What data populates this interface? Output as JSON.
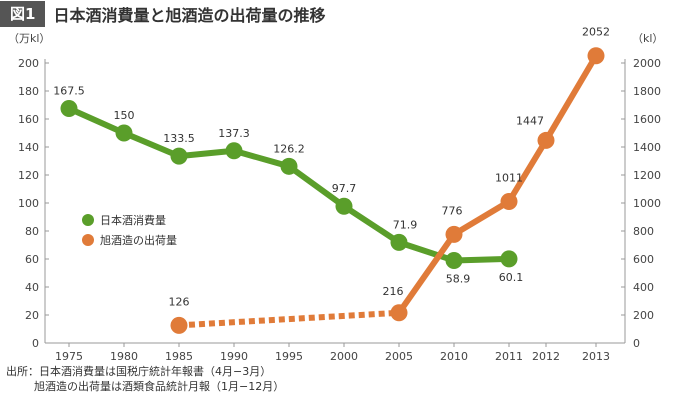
{
  "figure": {
    "badge": "図1",
    "title": "日本酒消費量と旭酒造の出荷量の推移"
  },
  "chart_data": {
    "type": "line",
    "left_axis_unit": "（万kl）",
    "right_axis_unit": "（kl）",
    "left_ylim": [
      0,
      200
    ],
    "right_ylim": [
      0,
      2000
    ],
    "left_ticks": [
      "0",
      "20",
      "40",
      "60",
      "80",
      "100",
      "120",
      "140",
      "160",
      "180",
      "200"
    ],
    "right_ticks": [
      "0",
      "200",
      "400",
      "600",
      "800",
      "1000",
      "1200",
      "1400",
      "1600",
      "1800",
      "2000"
    ],
    "x_ticks": [
      "1975",
      "1980",
      "1985",
      "1990",
      "1995",
      "2000",
      "2005",
      "2010",
      "2011",
      "2012",
      "2013"
    ],
    "series": [
      {
        "name": "日本酒消費量",
        "axis": "left",
        "color": "#5a9e2a",
        "points": [
          {
            "x": "1975",
            "value": 167.5,
            "label": "167.5"
          },
          {
            "x": "1980",
            "value": 150,
            "label": "150"
          },
          {
            "x": "1985",
            "value": 133.5,
            "label": "133.5"
          },
          {
            "x": "1990",
            "value": 137.3,
            "label": "137.3"
          },
          {
            "x": "1995",
            "value": 126.2,
            "label": "126.2"
          },
          {
            "x": "2000",
            "value": 97.7,
            "label": "97.7"
          },
          {
            "x": "2005",
            "value": 71.9,
            "label": "71.9"
          },
          {
            "x": "2010",
            "value": 58.9,
            "label": "58.9"
          },
          {
            "x": "2011",
            "value": 60.1,
            "label": "60.1"
          }
        ]
      },
      {
        "name": "旭酒造の出荷量",
        "axis": "right",
        "color": "#e07b39",
        "dashed_until": "2005",
        "points": [
          {
            "x": "1985",
            "value": 126,
            "label": "126"
          },
          {
            "x": "2005",
            "value": 216,
            "label": "216"
          },
          {
            "x": "2010",
            "value": 776,
            "label": "776"
          },
          {
            "x": "2011",
            "value": 1011,
            "label": "1011"
          },
          {
            "x": "2012",
            "value": 1447,
            "label": "1447"
          },
          {
            "x": "2013",
            "value": 2052,
            "label": "2052"
          }
        ]
      }
    ]
  },
  "source": {
    "line1": "出所：日本酒消費量は国税庁統計年報書（4月−3月）",
    "line2": "旭酒造の出荷量は酒類食品統計月報（1月−12月）"
  }
}
